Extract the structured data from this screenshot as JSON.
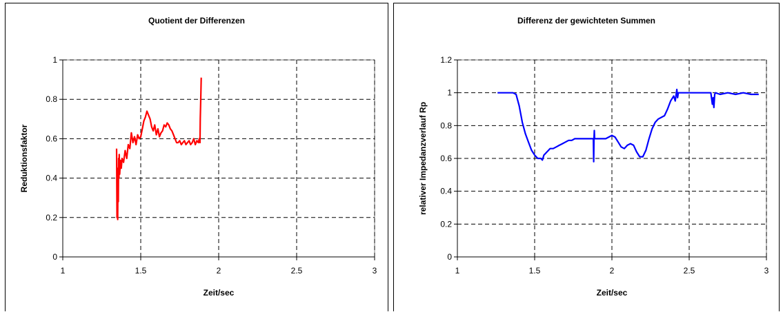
{
  "chart_data": [
    {
      "type": "line",
      "title": "Quotient der Differenzen",
      "xlabel": "Zeit/sec",
      "ylabel": "Reduktionsfaktor",
      "xlim": [
        1,
        3
      ],
      "ylim": [
        0,
        1
      ],
      "xticks": [
        "1",
        "1.5",
        "2",
        "2.5",
        "3"
      ],
      "yticks": [
        "0",
        "0.2",
        "0.4",
        "0.6",
        "0.8",
        "1"
      ],
      "grid": true,
      "legend": "none",
      "color": "#ff0000",
      "series": [
        {
          "x": [
            1.345,
            1.348,
            1.35,
            1.352,
            1.354,
            1.356,
            1.358,
            1.36,
            1.362,
            1.365,
            1.37,
            1.375,
            1.38,
            1.39,
            1.4,
            1.41,
            1.42,
            1.43,
            1.44,
            1.45,
            1.46,
            1.47,
            1.48,
            1.49,
            1.5,
            1.51,
            1.52,
            1.53,
            1.54,
            1.55,
            1.56,
            1.57,
            1.58,
            1.59,
            1.6,
            1.61,
            1.62,
            1.63,
            1.64,
            1.65,
            1.66,
            1.67,
            1.68,
            1.69,
            1.7,
            1.71,
            1.72,
            1.73,
            1.74,
            1.75,
            1.76,
            1.77,
            1.78,
            1.79,
            1.8,
            1.81,
            1.82,
            1.83,
            1.84,
            1.85,
            1.86,
            1.87,
            1.875,
            1.88,
            1.882,
            1.885,
            1.888
          ],
          "y": [
            0.55,
            0.2,
            0.45,
            0.19,
            0.4,
            0.28,
            0.5,
            0.4,
            0.52,
            0.42,
            0.49,
            0.45,
            0.5,
            0.48,
            0.54,
            0.5,
            0.57,
            0.55,
            0.63,
            0.58,
            0.61,
            0.57,
            0.62,
            0.6,
            0.61,
            0.65,
            0.69,
            0.71,
            0.74,
            0.72,
            0.7,
            0.66,
            0.64,
            0.67,
            0.62,
            0.65,
            0.61,
            0.63,
            0.64,
            0.67,
            0.66,
            0.68,
            0.67,
            0.65,
            0.64,
            0.62,
            0.6,
            0.58,
            0.58,
            0.59,
            0.57,
            0.58,
            0.59,
            0.57,
            0.58,
            0.59,
            0.57,
            0.58,
            0.6,
            0.57,
            0.59,
            0.58,
            0.6,
            0.58,
            0.7,
            0.8,
            0.91
          ]
        }
      ]
    },
    {
      "type": "line",
      "title": "Differenz der gewichteten Summen",
      "xlabel": "Zeit/sec",
      "ylabel": "relativer Impedanzverlauf Rp",
      "xlim": [
        1,
        3
      ],
      "ylim": [
        0,
        1.2
      ],
      "xticks": [
        "1",
        "1.5",
        "2",
        "2.5",
        "3"
      ],
      "yticks": [
        "0",
        "0.2",
        "0.4",
        "0.6",
        "0.8",
        "1",
        "1.2"
      ],
      "grid": true,
      "legend": "none",
      "color": "#0000ff",
      "series": [
        {
          "x": [
            1.26,
            1.28,
            1.3,
            1.32,
            1.34,
            1.36,
            1.38,
            1.4,
            1.42,
            1.44,
            1.46,
            1.48,
            1.5,
            1.52,
            1.54,
            1.55,
            1.56,
            1.58,
            1.6,
            1.62,
            1.64,
            1.66,
            1.68,
            1.7,
            1.72,
            1.74,
            1.76,
            1.78,
            1.8,
            1.82,
            1.84,
            1.86,
            1.88,
            1.882,
            1.884,
            1.886,
            1.888,
            1.89,
            1.9,
            1.92,
            1.94,
            1.96,
            1.98,
            2.0,
            2.02,
            2.04,
            2.06,
            2.08,
            2.1,
            2.12,
            2.14,
            2.16,
            2.18,
            2.2,
            2.22,
            2.24,
            2.26,
            2.28,
            2.3,
            2.32,
            2.34,
            2.36,
            2.38,
            2.4,
            2.41,
            2.42,
            2.425,
            2.43,
            2.44,
            2.46,
            2.48,
            2.5,
            2.55,
            2.6,
            2.64,
            2.65,
            2.655,
            2.66,
            2.665,
            2.67,
            2.7,
            2.75,
            2.8,
            2.85,
            2.9,
            2.95
          ],
          "y": [
            1.0,
            1.0,
            1.0,
            1.0,
            1.0,
            1.0,
            0.99,
            0.92,
            0.82,
            0.75,
            0.7,
            0.65,
            0.62,
            0.6,
            0.6,
            0.59,
            0.62,
            0.64,
            0.66,
            0.66,
            0.67,
            0.68,
            0.69,
            0.7,
            0.71,
            0.71,
            0.72,
            0.72,
            0.72,
            0.72,
            0.72,
            0.72,
            0.72,
            0.58,
            0.72,
            0.77,
            0.72,
            0.72,
            0.72,
            0.72,
            0.72,
            0.72,
            0.73,
            0.74,
            0.73,
            0.7,
            0.67,
            0.66,
            0.68,
            0.69,
            0.68,
            0.64,
            0.61,
            0.61,
            0.65,
            0.72,
            0.78,
            0.82,
            0.84,
            0.85,
            0.86,
            0.9,
            0.95,
            0.98,
            0.95,
            1.02,
            0.97,
            1.0,
            1.0,
            1.0,
            1.0,
            1.0,
            1.0,
            1.0,
            1.0,
            0.93,
            0.97,
            0.91,
            0.99,
            1.0,
            0.99,
            1.0,
            0.99,
            1.0,
            0.99,
            0.99
          ]
        }
      ]
    }
  ]
}
